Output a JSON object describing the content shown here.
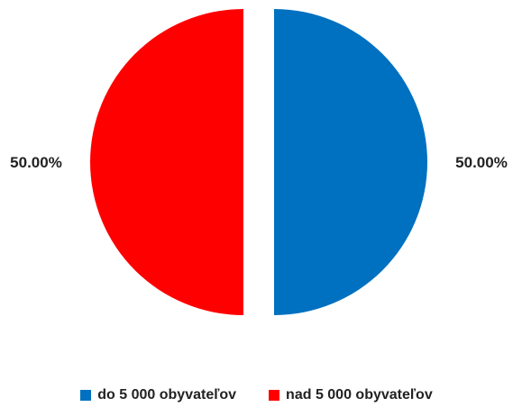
{
  "chart_data": {
    "type": "pie",
    "categories": [
      "do 5 000 obyvateľov",
      "nad 5 000 obyvateľov"
    ],
    "values": [
      50.0,
      50.0
    ],
    "data_labels": [
      "50.00%",
      "50.00%"
    ],
    "colors": [
      "#0070c0",
      "#ff0000"
    ],
    "title": "",
    "legend_position": "bottom",
    "exploded": true
  },
  "legend": {
    "items": [
      {
        "label": "do 5 000 obyvateľov",
        "color": "#0070c0"
      },
      {
        "label": "nad 5 000 obyvateľov",
        "color": "#ff0000"
      }
    ]
  }
}
